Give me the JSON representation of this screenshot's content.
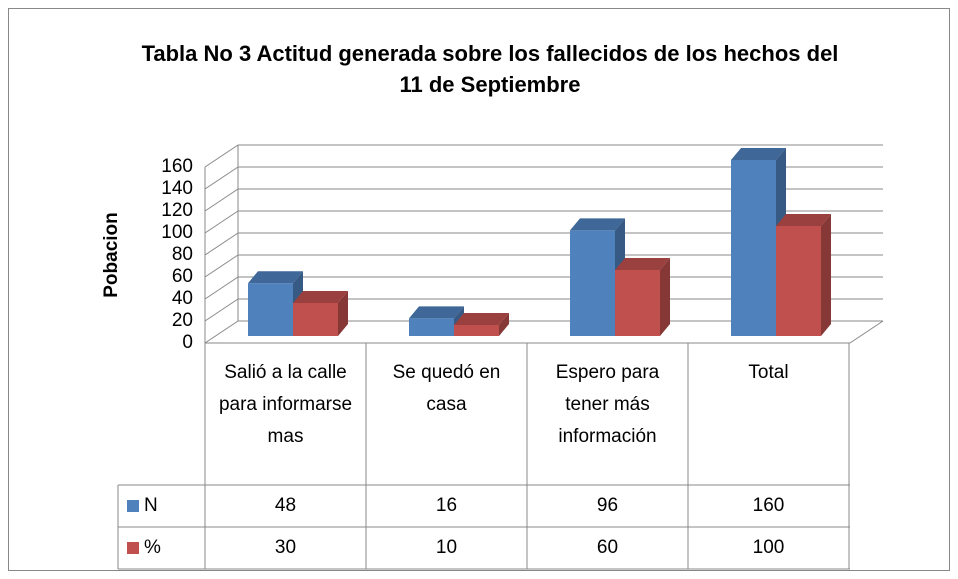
{
  "chart_data": {
    "type": "bar3d",
    "title": "Tabla No 3 Actitud generada sobre los fallecidos de los hechos del 11 de Septiembre",
    "ylabel": "Pobacion",
    "categories": [
      "Salió a la calle para informarse mas",
      "Se quedó en casa",
      "Espero para tener más información",
      "Total"
    ],
    "series": [
      {
        "name": "N",
        "color": "#4f81bd",
        "values": [
          48,
          16,
          96,
          160
        ]
      },
      {
        "name": "%",
        "color": "#c0504d",
        "values": [
          30,
          10,
          60,
          100
        ]
      }
    ],
    "ylim": [
      0,
      160
    ],
    "yticks": [
      0,
      20,
      40,
      60,
      80,
      100,
      120,
      140,
      160
    ],
    "grid": true,
    "data_table": true
  }
}
